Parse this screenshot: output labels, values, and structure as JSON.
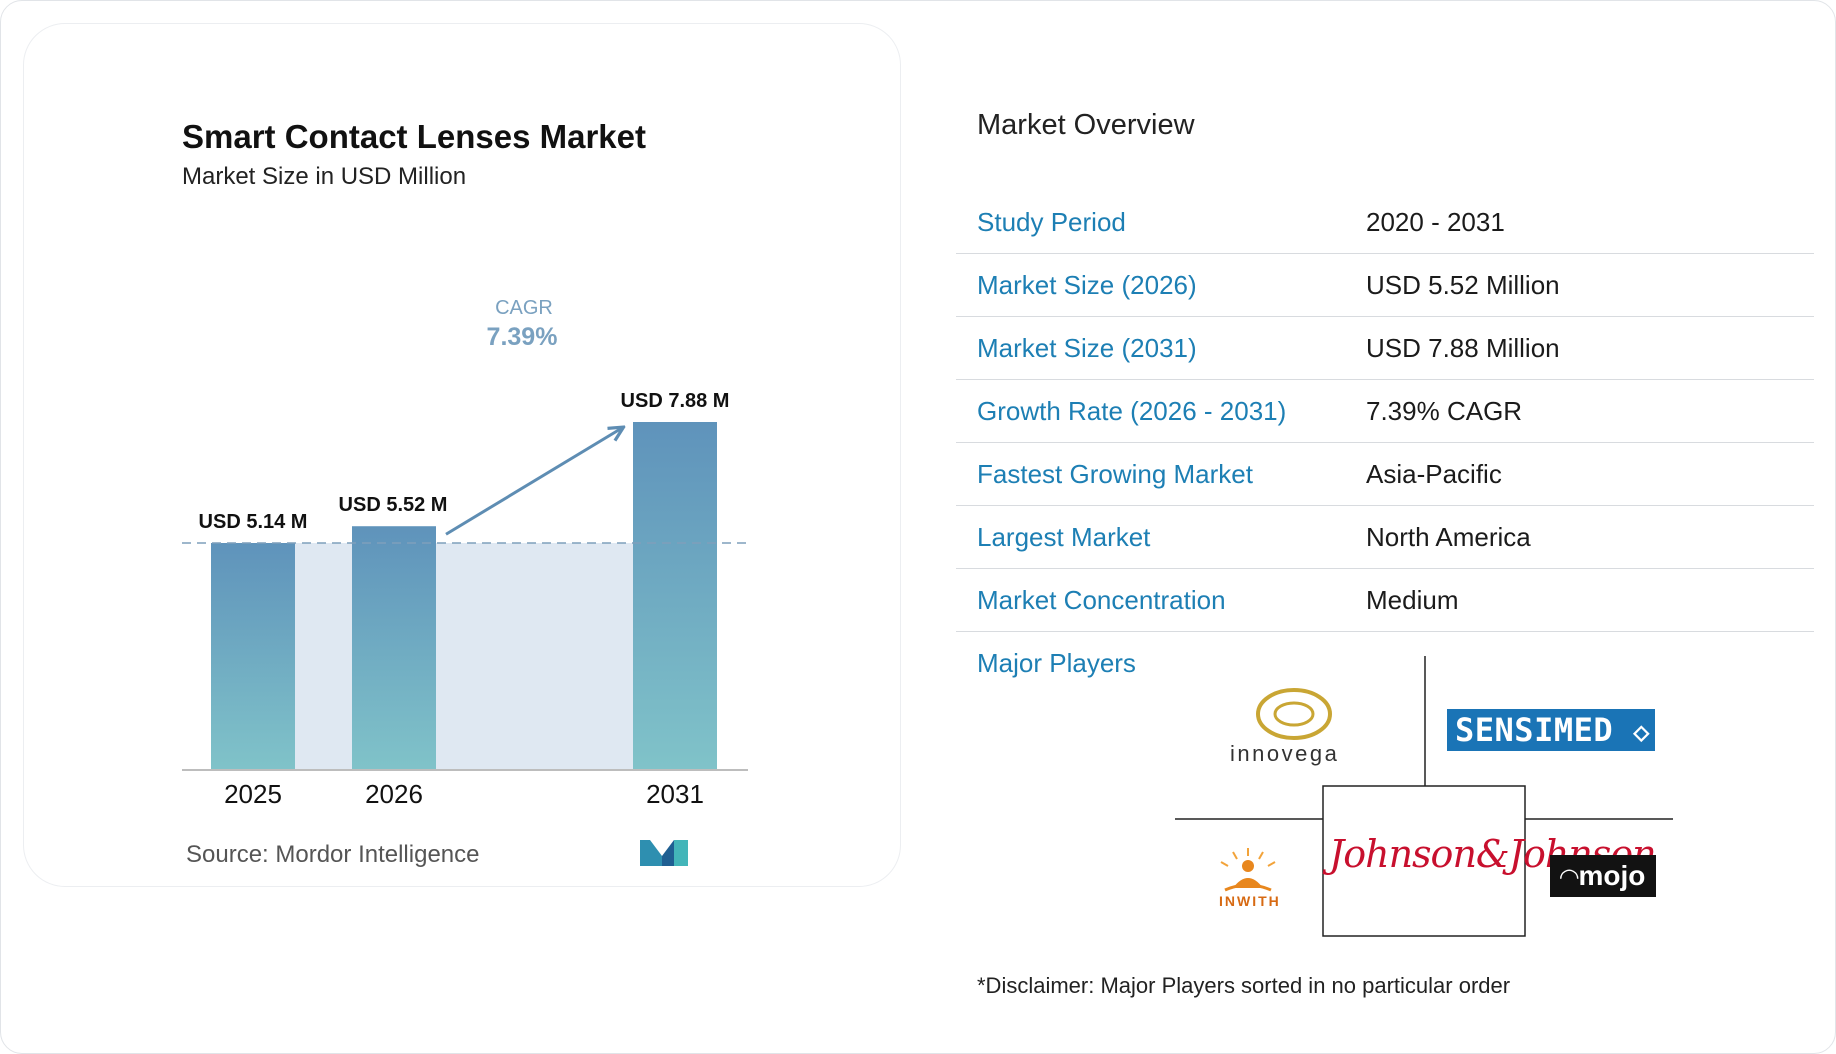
{
  "chart_data": {
    "type": "bar",
    "title": "Smart Contact Lenses Market",
    "subtitle": "Market Size in USD Million",
    "categories": [
      "2025",
      "2026",
      "2031"
    ],
    "values": [
      5.14,
      5.52,
      7.88
    ],
    "data_labels": [
      "USD 5.14 M",
      "USD 5.52 M",
      "USD 7.88 M"
    ],
    "cagr_label": "CAGR",
    "cagr_value": "7.39%",
    "source": "Source:  Mordor Intelligence",
    "colors": {
      "bar_top": "#5f93bb",
      "bar_bottom": "#80c3c9",
      "shade": "#dfe8f2",
      "cagr_arrow": "#5e8db3",
      "cagr_text": "#7aa1c0"
    }
  },
  "overview": {
    "title": "Market Overview",
    "rows": [
      {
        "key": "Study Period",
        "value": "2020 - 2031"
      },
      {
        "key": "Market Size (2026)",
        "value": "USD 5.52 Million"
      },
      {
        "key": "Market Size (2031)",
        "value": "USD 7.88 Million"
      },
      {
        "key": "Growth Rate (2026 - 2031)",
        "value": "7.39% CAGR"
      },
      {
        "key": "Fastest Growing Market",
        "value": "Asia-Pacific"
      },
      {
        "key": "Largest Market",
        "value": "North America"
      },
      {
        "key": "Market Concentration",
        "value": "Medium"
      }
    ],
    "players_label": "Major Players",
    "players": {
      "innovega": "innovega",
      "sensimed": "SENSIMED",
      "jj": "Johnson&Johnson",
      "inwith": "INWITH",
      "mojo": "mojo"
    },
    "disclaimer": "*Disclaimer: Major Players sorted in no particular order"
  },
  "accent_color": "#1d7fb4"
}
